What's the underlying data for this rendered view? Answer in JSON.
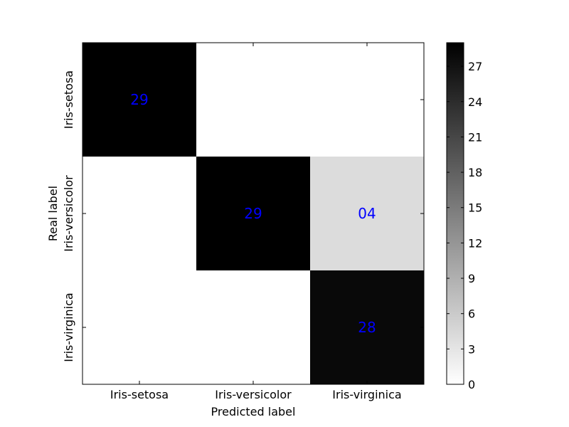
{
  "chart_data": {
    "type": "heatmap",
    "title": "",
    "xlabel": "Predicted label",
    "ylabel": "Real label",
    "x_categories": [
      "Iris-setosa",
      "Iris-versicolor",
      "Iris-virginica"
    ],
    "y_categories": [
      "Iris-setosa",
      "Iris-versicolor",
      "Iris-virginica"
    ],
    "matrix": [
      [
        29,
        0,
        0
      ],
      [
        0,
        29,
        4
      ],
      [
        0,
        0,
        28
      ]
    ],
    "cell_labels": [
      [
        "29",
        "",
        ""
      ],
      [
        "",
        "29",
        "04"
      ],
      [
        "",
        "",
        "28"
      ]
    ],
    "colormap": "grayscale (white low, black high)",
    "color_range": [
      0,
      29
    ],
    "colorbar_ticks": [
      "0",
      "3",
      "6",
      "9",
      "12",
      "15",
      "18",
      "21",
      "24",
      "27"
    ],
    "annotation_color": "#0000ff",
    "grid": false
  }
}
